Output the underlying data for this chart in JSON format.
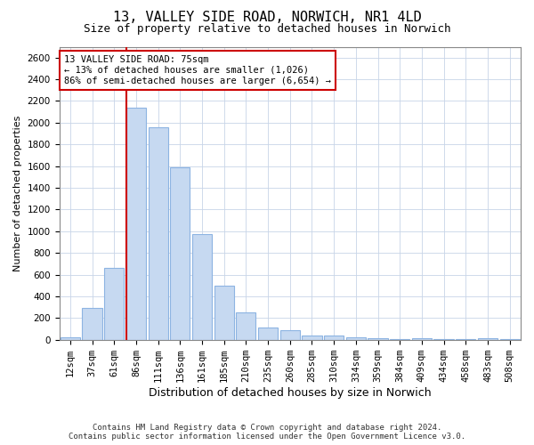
{
  "title_line1": "13, VALLEY SIDE ROAD, NORWICH, NR1 4LD",
  "title_line2": "Size of property relative to detached houses in Norwich",
  "xlabel": "Distribution of detached houses by size in Norwich",
  "ylabel": "Number of detached properties",
  "categories": [
    "12sqm",
    "37sqm",
    "61sqm",
    "86sqm",
    "111sqm",
    "136sqm",
    "161sqm",
    "185sqm",
    "210sqm",
    "235sqm",
    "260sqm",
    "285sqm",
    "310sqm",
    "334sqm",
    "359sqm",
    "384sqm",
    "409sqm",
    "434sqm",
    "458sqm",
    "483sqm",
    "508sqm"
  ],
  "values": [
    20,
    290,
    660,
    2140,
    1960,
    1590,
    970,
    500,
    250,
    115,
    90,
    35,
    35,
    25,
    15,
    10,
    15,
    10,
    5,
    15,
    5
  ],
  "bar_color": "#c6d9f1",
  "bar_edge_color": "#8db4e2",
  "vline_color": "#cc0000",
  "annotation_line1": "13 VALLEY SIDE ROAD: 75sqm",
  "annotation_line2": "← 13% of detached houses are smaller (1,026)",
  "annotation_line3": "86% of semi-detached houses are larger (6,654) →",
  "annotation_box_color": "#ffffff",
  "annotation_box_edge": "#cc0000",
  "ylim": [
    0,
    2700
  ],
  "yticks": [
    0,
    200,
    400,
    600,
    800,
    1000,
    1200,
    1400,
    1600,
    1800,
    2000,
    2200,
    2400,
    2600
  ],
  "footer_line1": "Contains HM Land Registry data © Crown copyright and database right 2024.",
  "footer_line2": "Contains public sector information licensed under the Open Government Licence v3.0.",
  "bg_color": "#ffffff",
  "grid_color": "#c8d4e8",
  "title1_fontsize": 11,
  "title2_fontsize": 9,
  "xlabel_fontsize": 9,
  "ylabel_fontsize": 8,
  "tick_fontsize": 7.5,
  "footer_fontsize": 6.5
}
